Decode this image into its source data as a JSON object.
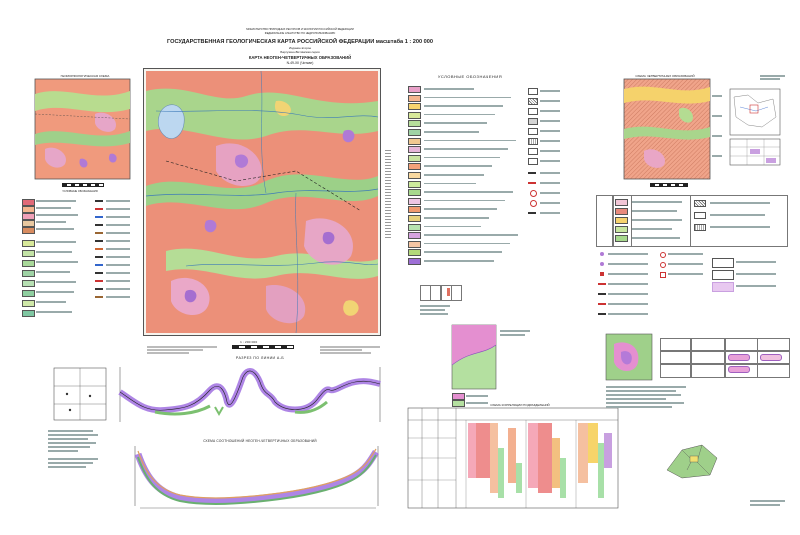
{
  "header": {
    "ministry": "МИНИСТЕРСТВО ПРИРОДНЫХ РЕСУРСОВ И ЭКОЛОГИИ РОССИЙСКОЙ ФЕДЕРАЦИИ",
    "agency": "ФЕДЕРАЛЬНОЕ АГЕНТСТВО ПО НЕДРОПОЛЬЗОВАНИЮ",
    "title": "ГОСУДАРСТВЕННАЯ ГЕОЛОГИЧЕСКАЯ КАРТА РОССИЙСКОЙ ФЕДЕРАЦИИ масштаба 1 : 200 000",
    "edition": "Издание второе",
    "series": "Баргузино-Витимская серия",
    "map_name": "КАРТА НЕОГЕН-ЧЕТВЕРТИЧНЫХ ОБРАЗОВАНИЙ",
    "sheet": "N-49-XII (Читкан)"
  },
  "legend": {
    "title": "УСЛОВНЫЕ ОБОЗНАЧЕНИЯ",
    "swatches": [
      "#e9a0c8",
      "#f4b58f",
      "#f7d36e",
      "#d8e99a",
      "#b7de9b",
      "#9fd3a5",
      "#f0c890",
      "#e6b5d8",
      "#c9e3a0",
      "#f5a27a",
      "#f9d9a0",
      "#cdea9c",
      "#a7d98d",
      "#eec6e3",
      "#f19a6f",
      "#e7d17c",
      "#b8e3b0",
      "#d6a3e0",
      "#f6c6a4",
      "#b3d97a",
      "#9e6fd6"
    ]
  },
  "profile1": {
    "title": "РАЗРЕЗ ПО ЛИНИИ А-Б"
  },
  "profile2": {
    "title": "СХЕМА СООТНОШЕНИЙ НЕОГЕН-ЧЕТВЕРТИЧНЫХ ОБРАЗОВАНИЙ"
  },
  "correlation": {
    "title": "СХЕМА КОРРЕЛЯЦИИ ПОДРАЗДЕЛЕНИЙ"
  },
  "left_inset": {
    "title": "ГЕОМОРФОЛОГИЧЕСКАЯ СХЕМА",
    "legend_title": "УСЛОВНЫЕ ОБОЗНАЧЕНИЯ"
  },
  "right_inset": {
    "title": "СХЕМА ЧЕТВЕРТИЧНЫХ ОБРАЗОВАНИЙ"
  },
  "scale": {
    "label": "1 : 200 000"
  },
  "colors": {
    "salmon": "#ee8a78",
    "pink": "#e8a0b4",
    "green": "#9fd08a",
    "lightgreen": "#cfe8a8",
    "purple": "#b47ad8",
    "yellow": "#f2d77a"
  }
}
